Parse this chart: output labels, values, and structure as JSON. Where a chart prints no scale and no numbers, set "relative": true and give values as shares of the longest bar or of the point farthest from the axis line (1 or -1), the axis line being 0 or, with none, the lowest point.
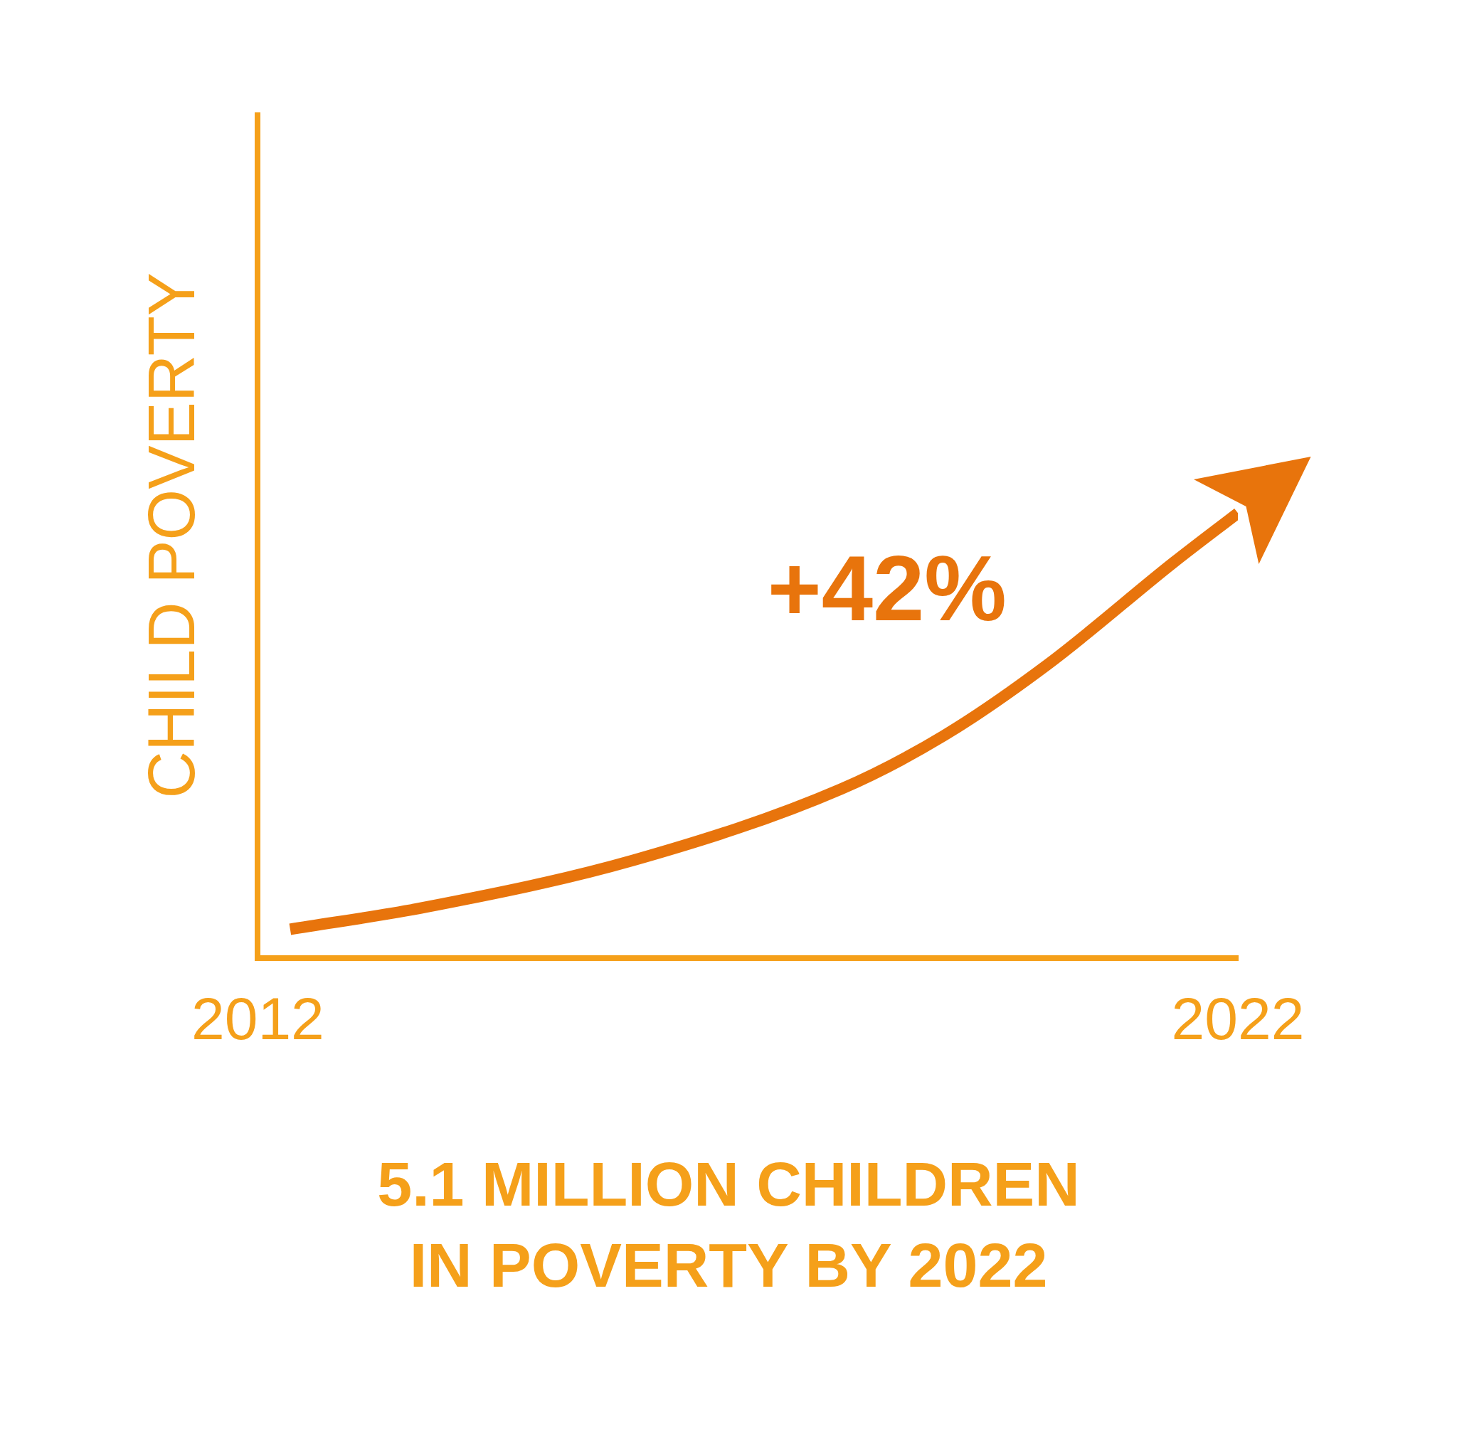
{
  "chart_data": {
    "type": "line",
    "title": "5.1 MILLION CHILDREN IN POVERTY BY 2022",
    "ylabel": "CHILD POVERTY",
    "annotations": [
      "+42%"
    ],
    "relative": true,
    "x": [
      2012.33,
      2013.72,
      2015.83,
      2017.95,
      2019.0,
      2020.06,
      2021.35,
      2022.0
    ],
    "series": [
      {
        "color": "#e8740c",
        "values": [
          0.065,
          0.115,
          0.22,
          0.38,
          0.5,
          0.66,
          0.89,
          1.0
        ]
      }
    ],
    "xlim": [
      2012,
      2022
    ],
    "xticks": [
      2012,
      2022
    ],
    "grid": false,
    "legend": false,
    "marker": "none",
    "line_style": "solid"
  }
}
